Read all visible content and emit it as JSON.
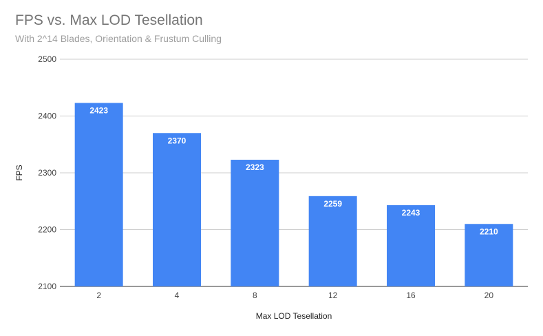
{
  "chart_data": {
    "type": "bar",
    "title": "FPS vs. Max LOD Tesellation",
    "subtitle": "With 2^14 Blades, Orientation & Frustum Culling",
    "xlabel": "Max LOD Tesellation",
    "ylabel": "FPS",
    "categories": [
      "2",
      "4",
      "8",
      "12",
      "16",
      "20"
    ],
    "values": [
      2423,
      2370,
      2323,
      2259,
      2243,
      2210
    ],
    "ylim": [
      2100,
      2500
    ],
    "yticks": [
      2100,
      2200,
      2300,
      2400,
      2500
    ],
    "grid": true,
    "legend": "none",
    "bar_color": "#4285f4",
    "data_labels": true
  }
}
